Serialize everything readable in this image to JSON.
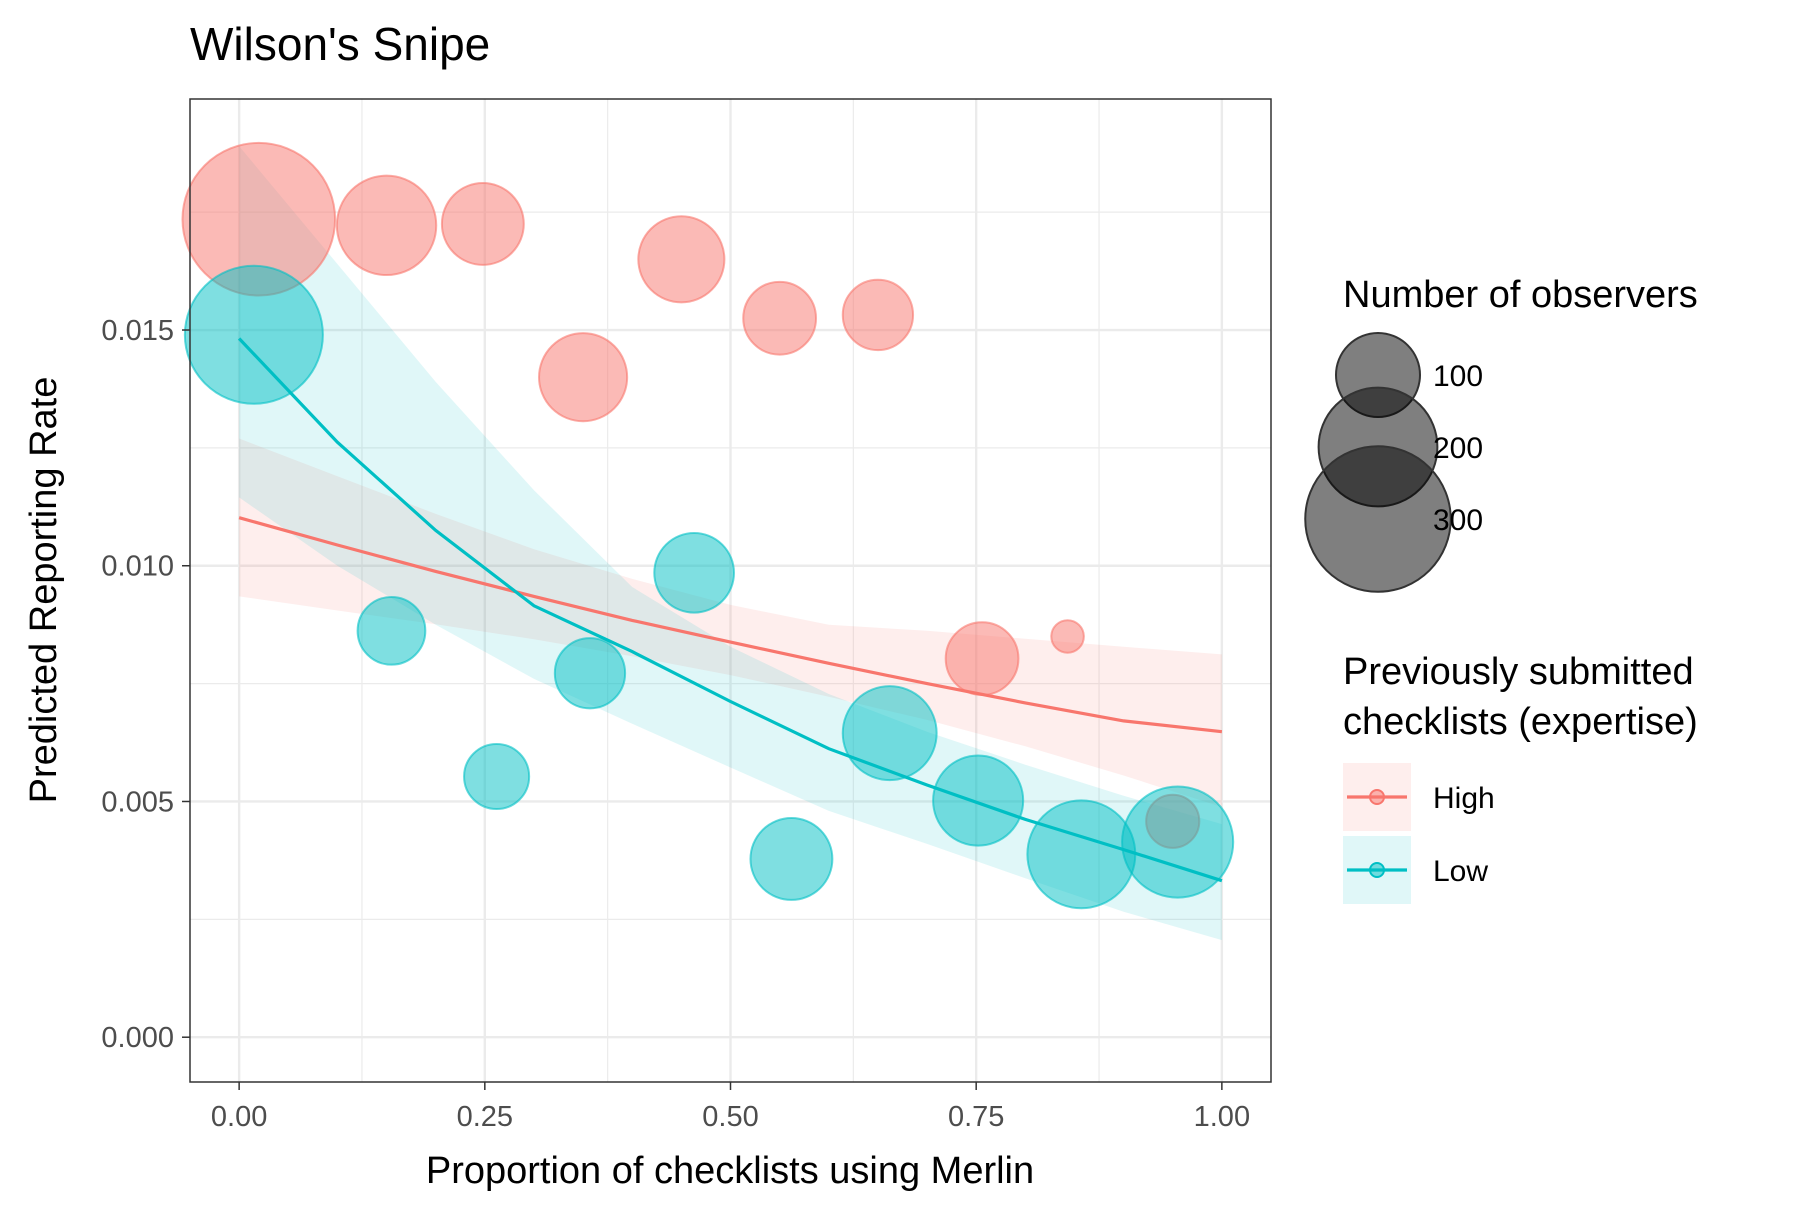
{
  "chart_data": {
    "type": "scatter",
    "title": "Wilson's Snipe",
    "xlabel": "Proportion of checklists using Merlin",
    "ylabel": "Predicted Reporting Rate",
    "xlim": [
      -0.05,
      1.05
    ],
    "ylim": [
      -0.00095,
      0.0199
    ],
    "x_ticks": [
      "0.00",
      "0.25",
      "0.50",
      "0.75",
      "1.00"
    ],
    "y_ticks": [
      "0.000",
      "0.005",
      "0.010",
      "0.015"
    ],
    "x_tick_values": [
      0,
      0.25,
      0.5,
      0.75,
      1.0
    ],
    "y_tick_values": [
      0,
      0.005,
      0.01,
      0.015
    ],
    "grid": true,
    "legend_position": "right",
    "size_legend": {
      "title": "Number of observers",
      "entries": [
        {
          "label": "100",
          "value": 100
        },
        {
          "label": "200",
          "value": 200
        },
        {
          "label": "300",
          "value": 300
        }
      ]
    },
    "color_legend": {
      "title_lines": [
        "Previously submitted",
        "checklists (expertise)"
      ],
      "entries": [
        {
          "label": "High",
          "color": "#F8766D"
        },
        {
          "label": "Low",
          "color": "#00BFC4"
        }
      ]
    },
    "series": [
      {
        "name": "High",
        "color": "#F8766D",
        "points": [
          {
            "x": 0.02,
            "y": 0.01735,
            "n": 330
          },
          {
            "x": 0.15,
            "y": 0.01722,
            "n": 140
          },
          {
            "x": 0.248,
            "y": 0.01725,
            "n": 95
          },
          {
            "x": 0.35,
            "y": 0.014,
            "n": 110
          },
          {
            "x": 0.45,
            "y": 0.0165,
            "n": 105
          },
          {
            "x": 0.55,
            "y": 0.01525,
            "n": 75
          },
          {
            "x": 0.65,
            "y": 0.01532,
            "n": 70
          },
          {
            "x": 0.756,
            "y": 0.00803,
            "n": 75
          },
          {
            "x": 0.843,
            "y": 0.0085,
            "n": 15
          },
          {
            "x": 0.95,
            "y": 0.00458,
            "n": 40
          }
        ],
        "fit": {
          "x": [
            0,
            0.1,
            0.2,
            0.3,
            0.4,
            0.5,
            0.6,
            0.7,
            0.8,
            0.9,
            1.0
          ],
          "y": [
            0.01102,
            0.01044,
            0.00988,
            0.00935,
            0.00884,
            0.00838,
            0.00793,
            0.0075,
            0.00709,
            0.00671,
            0.00648
          ],
          "lower": [
            0.00935,
            0.00905,
            0.00876,
            0.00844,
            0.00808,
            0.00768,
            0.00722,
            0.00673,
            0.00617,
            0.00555,
            0.00488
          ],
          "upper": [
            0.0127,
            0.0119,
            0.0111,
            0.01035,
            0.00972,
            0.00917,
            0.00875,
            0.00862,
            0.00845,
            0.00828,
            0.00812
          ]
        }
      },
      {
        "name": "Low",
        "color": "#00BFC4",
        "points": [
          {
            "x": 0.015,
            "y": 0.0149,
            "n": 270
          },
          {
            "x": 0.155,
            "y": 0.00862,
            "n": 65
          },
          {
            "x": 0.262,
            "y": 0.00553,
            "n": 60
          },
          {
            "x": 0.357,
            "y": 0.00772,
            "n": 70
          },
          {
            "x": 0.463,
            "y": 0.00985,
            "n": 90
          },
          {
            "x": 0.562,
            "y": 0.00378,
            "n": 95
          },
          {
            "x": 0.662,
            "y": 0.00645,
            "n": 125
          },
          {
            "x": 0.752,
            "y": 0.00502,
            "n": 115
          },
          {
            "x": 0.857,
            "y": 0.00388,
            "n": 165
          },
          {
            "x": 0.955,
            "y": 0.00414,
            "n": 175
          }
        ],
        "fit": {
          "x": [
            0,
            0.1,
            0.2,
            0.3,
            0.4,
            0.5,
            0.6,
            0.7,
            0.8,
            0.9,
            1.0
          ],
          "y": [
            0.01482,
            0.01262,
            0.01075,
            0.00915,
            0.00818,
            0.00712,
            0.00612,
            0.00535,
            0.00462,
            0.00398,
            0.00332
          ],
          "lower": [
            0.01145,
            0.01,
            0.00875,
            0.0076,
            0.00665,
            0.00572,
            0.0048,
            0.0041,
            0.00337,
            0.00266,
            0.00206
          ],
          "upper": [
            0.0189,
            0.0164,
            0.0139,
            0.0116,
            0.00955,
            0.00828,
            0.00728,
            0.00648,
            0.00578,
            0.00512,
            0.00452
          ]
        }
      }
    ]
  }
}
